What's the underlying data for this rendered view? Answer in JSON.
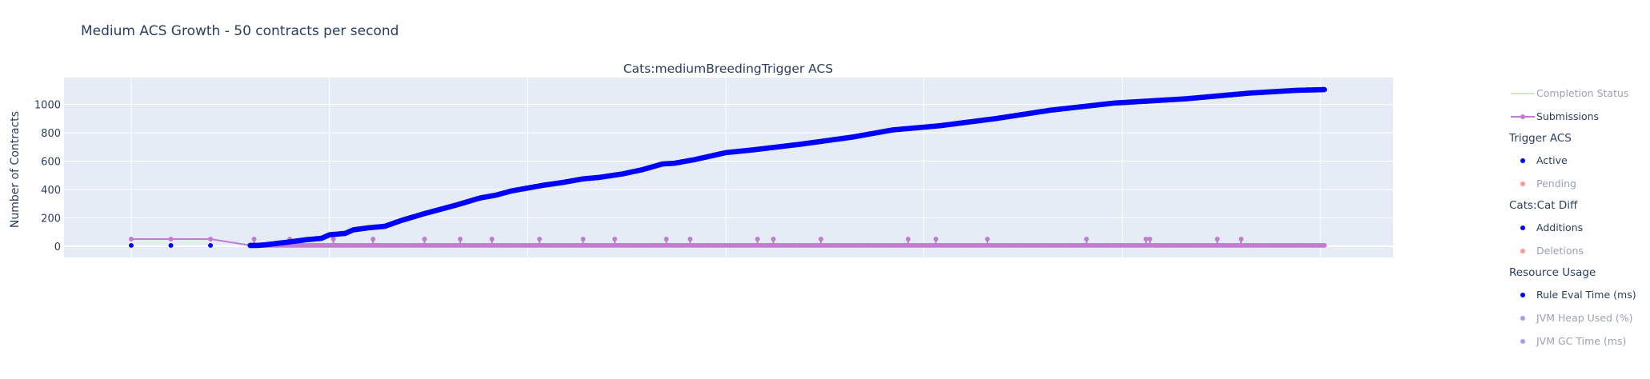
{
  "figure": {
    "title": "Medium ACS Growth - 50 contracts per second",
    "subplot_title": "Cats:mediumBreedingTrigger ACS"
  },
  "legend": {
    "items": [
      {
        "type": "item",
        "label": "Completion Status",
        "color": "#b9d3a8",
        "style": "line",
        "visible": false
      },
      {
        "type": "item",
        "label": "Submissions",
        "color": "#c27ad3",
        "style": "line-marker",
        "visible": true
      },
      {
        "type": "group",
        "label": "Trigger ACS"
      },
      {
        "type": "item",
        "label": "Active",
        "color": "#0000ff",
        "style": "marker",
        "visible": true
      },
      {
        "type": "item",
        "label": "Pending",
        "color": "#ff6b6b",
        "style": "marker",
        "visible": false
      },
      {
        "type": "group",
        "label": "Cats:Cat Diff"
      },
      {
        "type": "item",
        "label": "Additions",
        "color": "#0000ff",
        "style": "marker",
        "visible": true
      },
      {
        "type": "item",
        "label": "Deletions",
        "color": "#ff6b6b",
        "style": "marker",
        "visible": false
      },
      {
        "type": "group",
        "label": "Resource Usage"
      },
      {
        "type": "item",
        "label": "Rule Eval Time (ms)",
        "color": "#0000ff",
        "style": "marker",
        "visible": true
      },
      {
        "type": "item",
        "label": "JVM Heap Used (%)",
        "color": "#8470e8",
        "style": "marker",
        "visible": false
      },
      {
        "type": "item",
        "label": "JVM GC Time (ms)",
        "color": "#8470e8",
        "style": "marker",
        "visible": false
      }
    ]
  },
  "chart_data": {
    "type": "scatter",
    "title": "Medium ACS Growth - 50 contracts per second",
    "subtitle": "Cats:mediumBreedingTrigger ACS",
    "xlabel": "",
    "ylabel": "Number of Contracts",
    "ylim": [
      -80,
      1190
    ],
    "xlim": [
      0,
      318
    ],
    "yticks": [
      0,
      200,
      400,
      600,
      800,
      1000
    ],
    "grid": true,
    "background": "#e5ecf6",
    "legend_position": "right",
    "series": [
      {
        "name": "Active",
        "color": "#0000ff",
        "mode": "markers",
        "x": [
          16,
          26,
          36,
          46,
          47,
          48,
          50,
          53,
          56,
          60,
          64,
          66,
          70,
          72,
          76,
          80,
          84,
          90,
          98,
          104,
          108,
          112,
          116,
          120,
          125,
          130,
          134,
          140,
          145,
          150,
          153,
          158,
          166,
          173,
          176,
          185,
          198,
          208,
          220,
          234,
          248,
          264,
          282,
          298,
          310,
          317
        ],
        "y": [
          5,
          5,
          5,
          5,
          5,
          5,
          10,
          20,
          30,
          45,
          55,
          80,
          90,
          115,
          130,
          140,
          180,
          230,
          290,
          340,
          360,
          390,
          410,
          430,
          450,
          475,
          485,
          510,
          540,
          580,
          585,
          610,
          660,
          680,
          690,
          720,
          770,
          820,
          850,
          900,
          960,
          1010,
          1040,
          1080,
          1100,
          1105
        ]
      },
      {
        "name": "Submissions",
        "color": "#c27ad3",
        "mode": "lines+markers",
        "x": [
          16,
          26,
          36,
          46,
          47,
          50,
          55,
          60,
          64,
          68,
          75,
          82,
          90,
          99,
          107,
          115,
          119,
          126,
          135,
          145,
          149,
          155,
          167,
          177,
          181,
          193,
          205,
          212,
          225,
          241,
          256,
          272,
          274,
          275,
          290,
          296,
          304,
          313,
          316,
          317
        ],
        "y": [
          50,
          50,
          50,
          5,
          5,
          5,
          5,
          5,
          5,
          5,
          5,
          5,
          5,
          5,
          5,
          5,
          5,
          5,
          5,
          5,
          5,
          5,
          5,
          5,
          5,
          5,
          5,
          5,
          5,
          5,
          5,
          5,
          5,
          5,
          5,
          5,
          5,
          5,
          5,
          5
        ],
        "spike_x": [
          47,
          56,
          67,
          77,
          90,
          99,
          107,
          119,
          130,
          138,
          151,
          157,
          174,
          178,
          190,
          212,
          219,
          232,
          257,
          272,
          273,
          290,
          296
        ],
        "spike_y": 50
      }
    ]
  }
}
